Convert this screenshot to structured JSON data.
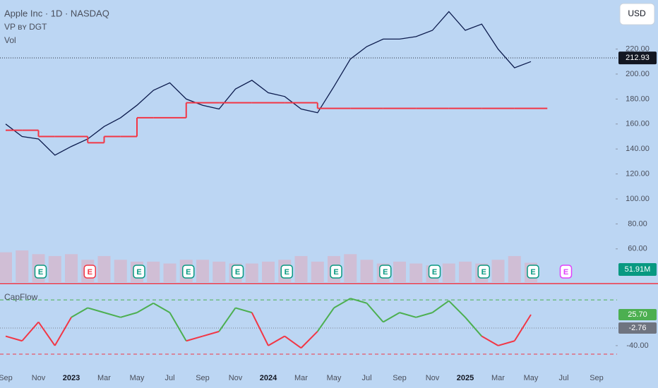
{
  "header": {
    "symbol": "Apple Inc · 1D · NASDAQ",
    "indicator": "VP ʙʏ DGT",
    "volume_name": "Vol",
    "currency": "USD"
  },
  "chart_data": [
    {
      "type": "line",
      "categories": [
        "Sep",
        null,
        "Nov",
        null,
        "2023",
        null,
        "Mar",
        null,
        "May",
        null,
        "Jul",
        null,
        "Sep",
        null,
        "Nov",
        null,
        "2024",
        null,
        "Mar",
        null,
        "May",
        null,
        "Jul",
        null,
        "Sep",
        null,
        "Nov",
        null,
        "2025",
        null,
        "Mar",
        null,
        "May",
        null,
        "Jul",
        null,
        "Sep"
      ],
      "series": [
        {
          "color": "#0c1b4d",
          "values": [
            160,
            150,
            148,
            135,
            142,
            148,
            158,
            165,
            175,
            187,
            193,
            180,
            175,
            172,
            188,
            195,
            185,
            182,
            172,
            169,
            190,
            212,
            222,
            228,
            228,
            230,
            235,
            250,
            235,
            240,
            220,
            205,
            210,
            null,
            null,
            null,
            null
          ]
        },
        {
          "color": "#f23645",
          "style": "step",
          "values": [
            155,
            155,
            150,
            150,
            150,
            145,
            150,
            150,
            165,
            165,
            165,
            177,
            177,
            177,
            177,
            177,
            177,
            177,
            177,
            172.5,
            172.5,
            172.5,
            172.5,
            172.5,
            172.5,
            172.5,
            172.5,
            172.5,
            172.5,
            172.5,
            172.5,
            172.5,
            172.5,
            null,
            null,
            null,
            null
          ]
        }
      ],
      "ylim": [
        32.2,
        259.3
      ],
      "yticks": [
        {
          "value": 60,
          "label": "60.00"
        },
        {
          "value": 80,
          "label": "80.00"
        },
        {
          "value": 100,
          "label": "100.00"
        },
        {
          "value": 120,
          "label": "120.00"
        },
        {
          "value": 140,
          "label": "140.00"
        },
        {
          "value": 160,
          "label": "160.00"
        },
        {
          "value": 180,
          "label": "180.00"
        },
        {
          "value": 200,
          "label": "200.00"
        },
        {
          "value": 220,
          "label": "220.00"
        }
      ],
      "last_price": 212.93,
      "volume": {
        "color": "#d9b3c8",
        "label_color": "#089981",
        "values": [
          80,
          85,
          75,
          70,
          75,
          60,
          70,
          60,
          55,
          55,
          50,
          60,
          60,
          55,
          50,
          50,
          55,
          60,
          70,
          55,
          70,
          75,
          60,
          50,
          55,
          50,
          45,
          50,
          55,
          50,
          60,
          70,
          51.91,
          null,
          null,
          null,
          null
        ],
        "value_labels": [
          null,
          null,
          null,
          null,
          null,
          null,
          null,
          null,
          null,
          null,
          null,
          null,
          null,
          null,
          null,
          null,
          null,
          null,
          null,
          null,
          null,
          null,
          null,
          null,
          null,
          null,
          null,
          null,
          null,
          null,
          null,
          null,
          "51.91M",
          null,
          null,
          null,
          null
        ]
      },
      "earnings": [
        null,
        null,
        "E",
        null,
        null,
        "E",
        null,
        null,
        "E",
        null,
        null,
        "E",
        null,
        null,
        "E",
        null,
        null,
        "E",
        null,
        null,
        "E",
        null,
        null,
        "E",
        null,
        null,
        "E",
        null,
        null,
        "E",
        null,
        null,
        "E",
        null,
        "E",
        null,
        null
      ],
      "earnings_colors": [
        null,
        null,
        "#089981",
        null,
        null,
        "#f23645",
        null,
        null,
        "#089981",
        null,
        null,
        "#089981",
        null,
        null,
        "#089981",
        null,
        null,
        "#089981",
        null,
        null,
        "#089981",
        null,
        null,
        "#089981",
        null,
        null,
        "#089981",
        null,
        null,
        "#089981",
        null,
        null,
        "#089981",
        null,
        "#e040fb",
        null,
        null
      ]
    },
    {
      "type": "line",
      "title": "CapFlow",
      "series": [
        {
          "positive_color": "#4caf50",
          "negative_color": "#f23645",
          "values": [
            -20,
            -30,
            10,
            -40,
            20,
            40,
            30,
            20,
            30,
            50,
            30,
            -30,
            -20,
            -10,
            40,
            30,
            -40,
            -20,
            -45,
            -10,
            40,
            60,
            50,
            10,
            30,
            20,
            30,
            55,
            20,
            -20,
            -40,
            -30,
            25.7,
            null,
            null,
            null,
            null
          ],
          "value_labels": [
            null,
            null,
            null,
            null,
            null,
            null,
            null,
            null,
            null,
            null,
            null,
            null,
            null,
            null,
            null,
            null,
            null,
            null,
            null,
            null,
            null,
            null,
            null,
            null,
            null,
            null,
            null,
            null,
            null,
            null,
            null,
            null,
            "25.70",
            null,
            null,
            null,
            null
          ]
        }
      ],
      "signal_last": -2.76,
      "ylim": [
        -85,
        90
      ],
      "yticks": [
        {
          "value": -40,
          "label": "-40.00"
        }
      ],
      "levels": [
        {
          "value": 57,
          "color": "#4caf50"
        },
        {
          "value": -58,
          "color": "#f23645"
        }
      ]
    }
  ]
}
